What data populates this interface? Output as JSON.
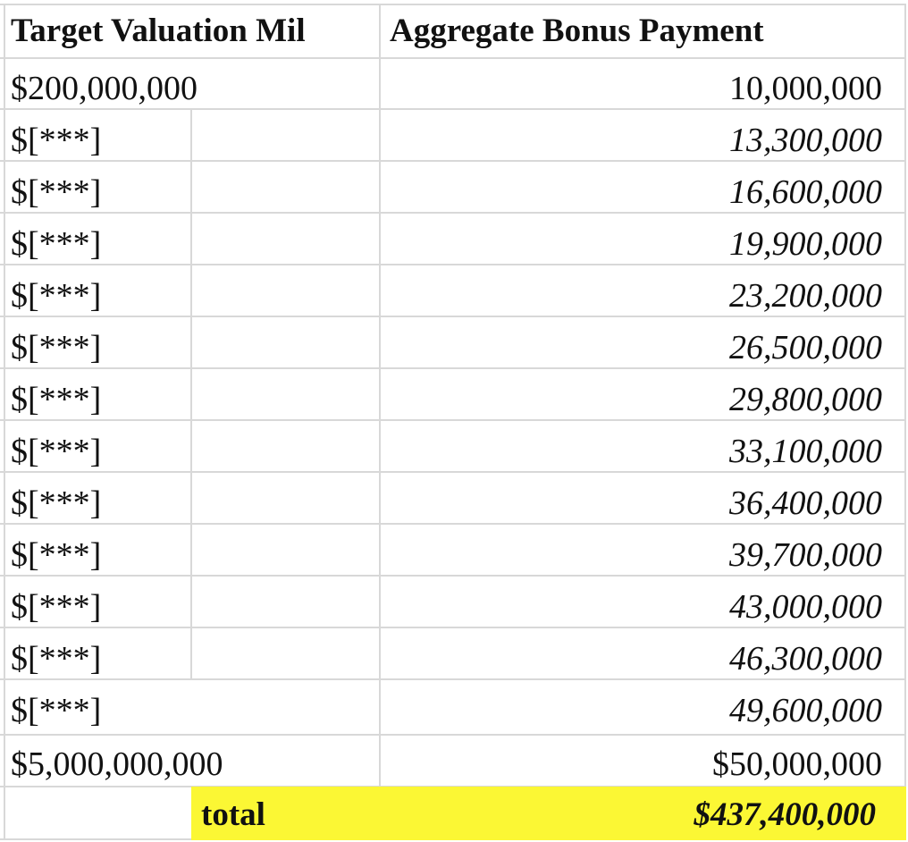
{
  "headers": {
    "col1": "Target Valuation Mil",
    "col2": "Aggregate Bonus Payment"
  },
  "rows": [
    {
      "milestone": "$200,000,000",
      "bonus": "10,000,000"
    },
    {
      "milestone": "$[***]",
      "bonus": "13,300,000"
    },
    {
      "milestone": "$[***]",
      "bonus": "16,600,000"
    },
    {
      "milestone": "$[***]",
      "bonus": "19,900,000"
    },
    {
      "milestone": "$[***]",
      "bonus": "23,200,000"
    },
    {
      "milestone": "$[***]",
      "bonus": "26,500,000"
    },
    {
      "milestone": "$[***]",
      "bonus": "29,800,000"
    },
    {
      "milestone": "$[***]",
      "bonus": "33,100,000"
    },
    {
      "milestone": "$[***]",
      "bonus": "36,400,000"
    },
    {
      "milestone": "$[***]",
      "bonus": "39,700,000"
    },
    {
      "milestone": "$[***]",
      "bonus": "43,000,000"
    },
    {
      "milestone": "$[***]",
      "bonus": "46,300,000"
    },
    {
      "milestone": "$[***]",
      "bonus": "49,600,000"
    },
    {
      "milestone": "$5,000,000,000",
      "bonus": "$50,000,000"
    }
  ],
  "total": {
    "label": "total",
    "value": "$437,400,000"
  },
  "colors": {
    "highlight": "#fbf734",
    "gridline": "#d8d8d8"
  }
}
